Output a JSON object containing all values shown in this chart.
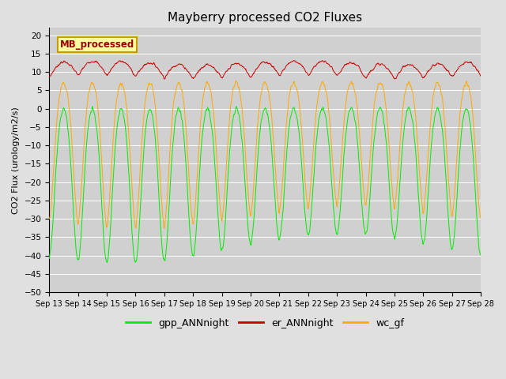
{
  "title": "Mayberry processed CO2 Fluxes",
  "ylabel": "CO2 Flux (urology/m2/s)",
  "ylim": [
    -50,
    22
  ],
  "yticks": [
    -50,
    -45,
    -40,
    -35,
    -30,
    -25,
    -20,
    -15,
    -10,
    -5,
    0,
    5,
    10,
    15,
    20
  ],
  "start_day": 13,
  "end_day": 28,
  "n_days": 15,
  "points_per_day": 96,
  "colors": {
    "gpp": "#00ee00",
    "er": "#cc0000",
    "wc": "#ffaa00"
  },
  "legend_label_box": "MB_processed",
  "legend_labels": [
    "gpp_ANNnight",
    "er_ANNnight",
    "wc_gf"
  ],
  "fig_facecolor": "#e0e0e0",
  "ax_facecolor": "#d0d0d0",
  "grid_color": "#ffffff",
  "lw": 0.7
}
